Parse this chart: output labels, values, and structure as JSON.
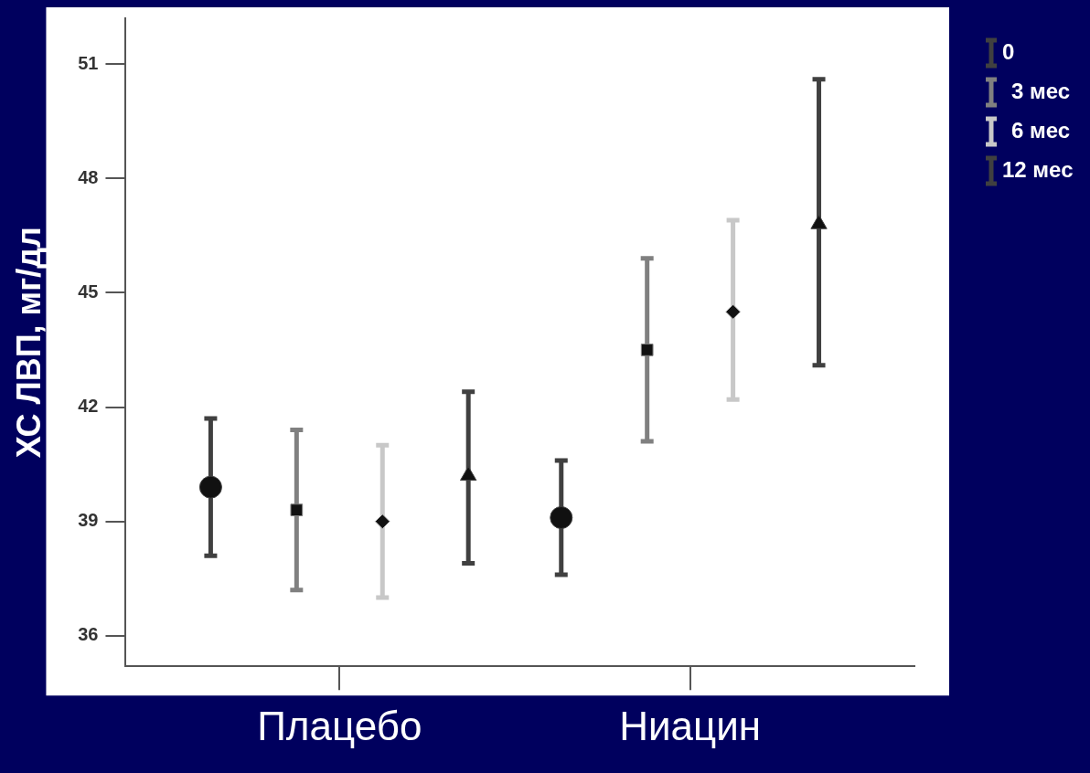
{
  "chart_data": {
    "type": "scatter",
    "ylabel": "ХС ЛВП, мг/дл",
    "categories": [
      "Плацебо",
      "Ниацин"
    ],
    "ylim": [
      35.2,
      52.2
    ],
    "yticks": [
      36,
      39,
      42,
      45,
      48,
      51
    ],
    "grid": false,
    "legend": "top right",
    "series": [
      {
        "name": "0",
        "color": "#404040",
        "marker": "circle",
        "values": [
          39.9,
          39.1
        ],
        "errors": [
          [
            38.1,
            41.7
          ],
          [
            37.6,
            40.6
          ]
        ]
      },
      {
        "name": "3 мес",
        "color": "#808080",
        "marker": "square",
        "values": [
          39.3,
          43.5
        ],
        "errors": [
          [
            37.2,
            41.4
          ],
          [
            41.1,
            45.9
          ]
        ]
      },
      {
        "name": "6 мес",
        "color": "#c8c8c8",
        "marker": "diamond",
        "values": [
          39.0,
          44.5
        ],
        "errors": [
          [
            37.0,
            41.0
          ],
          [
            42.2,
            46.9
          ]
        ]
      },
      {
        "name": "12 мес",
        "color": "#404040",
        "marker": "triangle",
        "values": [
          40.2,
          46.8
        ],
        "errors": [
          [
            37.9,
            42.4
          ],
          [
            43.1,
            50.6
          ]
        ]
      }
    ]
  }
}
